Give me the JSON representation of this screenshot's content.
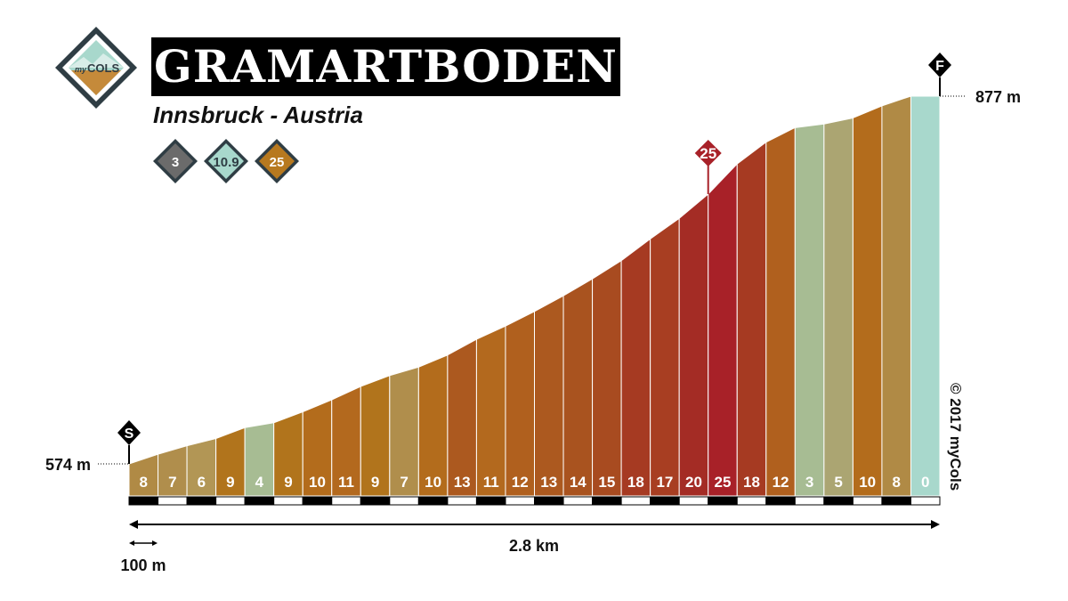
{
  "header": {
    "title": "GRAMARTBODEN",
    "subtitle": "Innsbruck - Austria",
    "logo": {
      "prefix": "my",
      "text": "COLS"
    },
    "badges": [
      {
        "value": "3",
        "color": "#6b6b6b"
      },
      {
        "value": "10.9",
        "color": "#a8d8cc"
      },
      {
        "value": "25",
        "color": "#b7791f"
      }
    ]
  },
  "copyright": "© 2017 myCols",
  "chart_data": {
    "type": "area",
    "start_marker": "S",
    "finish_marker": "F",
    "start_altitude": 574,
    "start_altitude_label": "574 m",
    "end_altitude": 877,
    "end_altitude_label": "877 m",
    "total_distance_km": 2.8,
    "total_distance_label": "2.8 km",
    "segment_length_m": 100,
    "scale_label": "100 m",
    "max_gradient": 25,
    "max_gradient_segment": 20,
    "segments": [
      8,
      7,
      6,
      9,
      4,
      9,
      10,
      11,
      9,
      7,
      10,
      13,
      11,
      12,
      13,
      14,
      15,
      18,
      17,
      20,
      25,
      18,
      12,
      3,
      5,
      10,
      8,
      0
    ],
    "colors": {
      "0": "#a8d8cc",
      "3": "#a7bc93",
      "4": "#a7bc93",
      "5": "#aba572",
      "6": "#b29655",
      "7": "#b08e4c",
      "8": "#b08a45",
      "9": "#b1741c",
      "10": "#b36c1c",
      "11": "#b3691e",
      "12": "#b0601e",
      "13": "#ac591f",
      "14": "#a9531f",
      "15": "#a84b20",
      "17": "#a83e22",
      "18": "#a63a22",
      "20": "#a42c25",
      "25": "#a82128"
    }
  }
}
